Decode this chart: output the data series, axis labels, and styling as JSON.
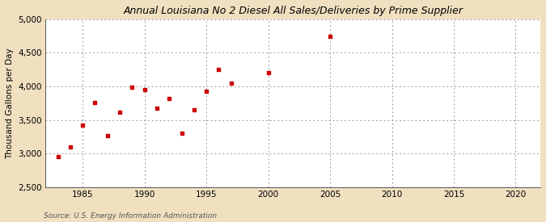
{
  "title": "Annual Louisiana No 2 Diesel All Sales/Deliveries by Prime Supplier",
  "ylabel": "Thousand Gallons per Day",
  "source": "Source: U.S. Energy Information Administration",
  "fig_background_color": "#f0e0c0",
  "plot_background_color": "#ffffff",
  "marker_color": "#cc0000",
  "xlim": [
    1982,
    2022
  ],
  "ylim": [
    2500,
    5000
  ],
  "yticks": [
    2500,
    3000,
    3500,
    4000,
    4500,
    5000
  ],
  "xticks": [
    1985,
    1990,
    1995,
    2000,
    2005,
    2010,
    2015,
    2020
  ],
  "years": [
    1983,
    1984,
    1985,
    1986,
    1987,
    1988,
    1989,
    1990,
    1991,
    1992,
    1993,
    1994,
    1995,
    1996,
    1997,
    2000,
    2005
  ],
  "values": [
    2960,
    3100,
    3430,
    3760,
    3270,
    3620,
    3990,
    3950,
    3680,
    3820,
    3300,
    3650,
    3930,
    4250,
    4050,
    4200,
    4750
  ]
}
